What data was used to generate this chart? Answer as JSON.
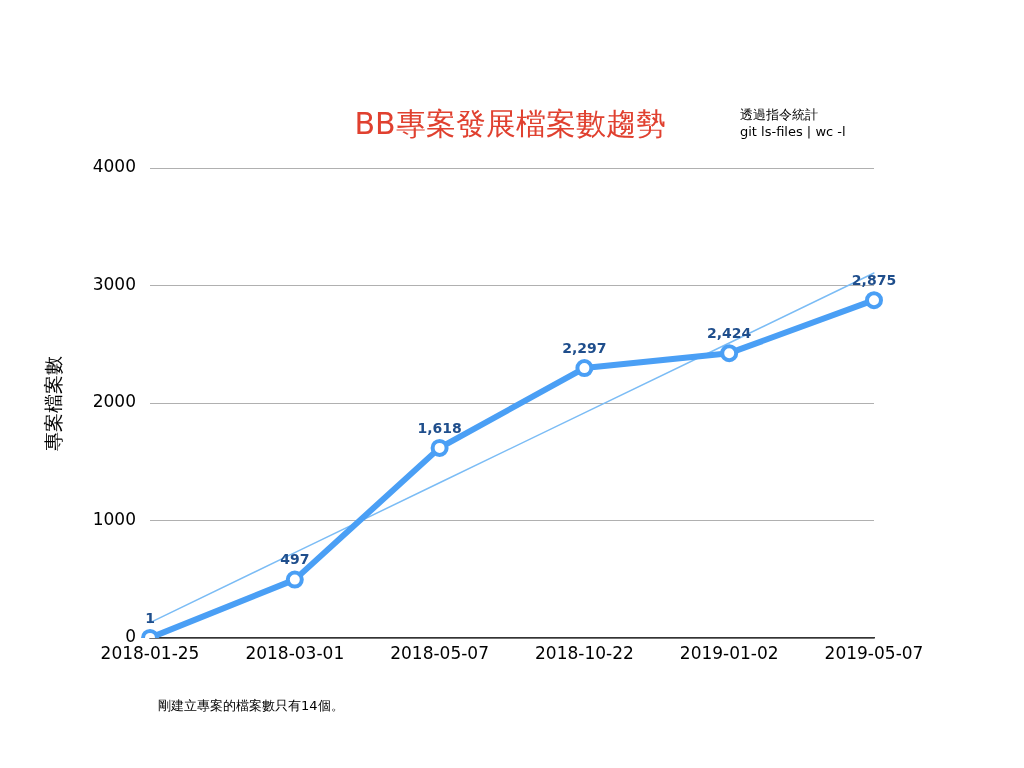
{
  "chart_data": {
    "type": "line",
    "title": "BB專案發展檔案數趨勢",
    "ylabel": "專案檔案數",
    "categories": [
      "2018-01-25",
      "2018-03-01",
      "2018-05-07",
      "2018-10-22",
      "2019-01-02",
      "2019-05-07"
    ],
    "series": [
      {
        "color": "#4a9ff5",
        "values": [
          1,
          497,
          1618,
          2297,
          2424,
          2875
        ],
        "value_labels": [
          "1",
          "497",
          "1,618",
          "2,297",
          "2,424",
          "2,875"
        ],
        "marker": "circle"
      },
      {
        "type": "line",
        "color": "#7bbcf5",
        "values": [
          131,
          726,
          1321,
          1916,
          2511,
          3106
        ],
        "marker": "none"
      }
    ],
    "ylim": [
      0,
      4000
    ],
    "yticks": [
      0,
      1000,
      2000,
      3000,
      4000
    ],
    "grid": "y",
    "legend": false,
    "annotations": [
      "透過指令統計",
      "git ls-files | wc -l",
      "剛建立專案的檔案數只有14個。"
    ]
  }
}
